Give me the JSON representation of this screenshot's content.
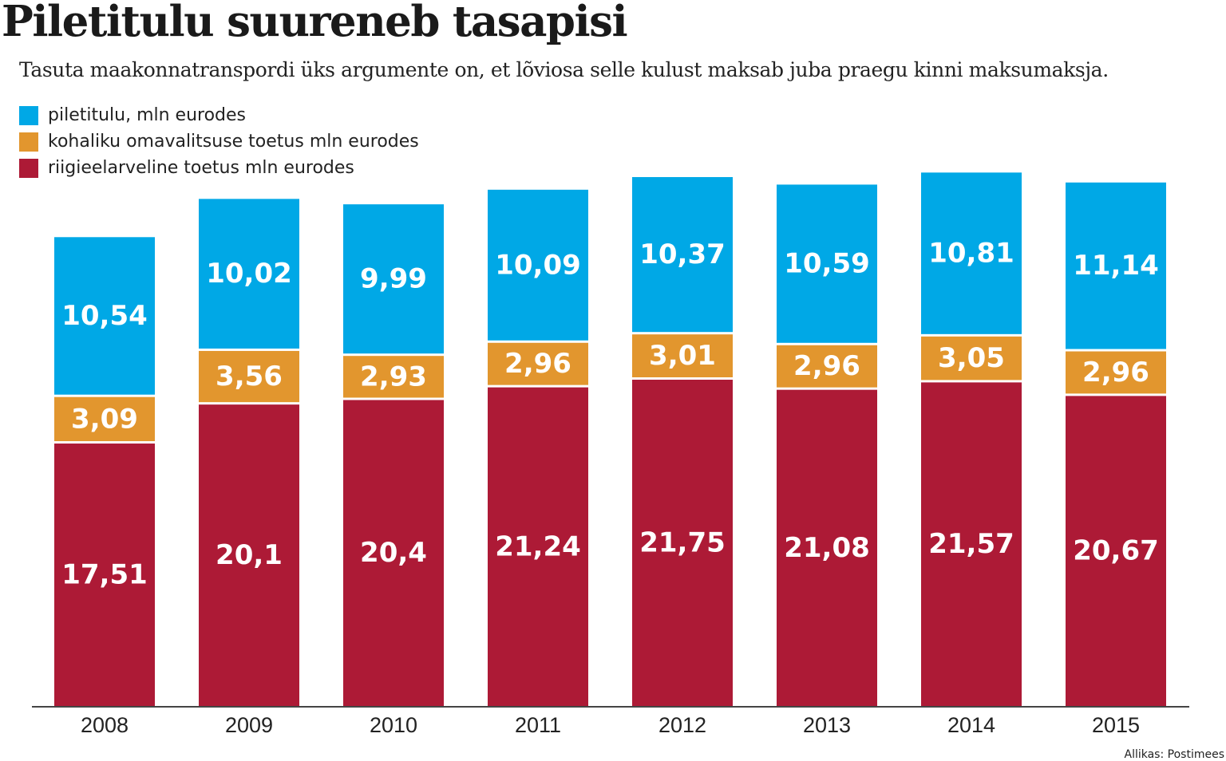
{
  "chart_data": {
    "type": "bar",
    "stacked": true,
    "title": "Piletitulu suureneb tasapisi",
    "subtitle": "Tasuta maakonnatranspordi üks argumente on, et lõviosa selle kulust maksab juba praegu kinni maksumaksja.",
    "source": "Allikas: Postimees",
    "categories": [
      "2008",
      "2009",
      "2010",
      "2011",
      "2012",
      "2013",
      "2014",
      "2015"
    ],
    "series": [
      {
        "name": "riigieelarveline toetus mln eurodes",
        "color": "#ad1a36",
        "values": [
          17.51,
          20.1,
          20.4,
          21.24,
          21.75,
          21.08,
          21.57,
          20.67
        ],
        "labels": [
          "17,51",
          "20,1",
          "20,4",
          "21,24",
          "21,75",
          "21,08",
          "21,57",
          "20,67"
        ]
      },
      {
        "name": "kohaliku omavalitsuse toetus mln eurodes",
        "color": "#e2962e",
        "values": [
          3.09,
          3.56,
          2.93,
          2.96,
          3.01,
          2.96,
          3.05,
          2.96
        ],
        "labels": [
          "3,09",
          "3,56",
          "2,93",
          "2,96",
          "3,01",
          "2,96",
          "3,05",
          "2,96"
        ]
      },
      {
        "name": "piletitulu, mln eurodes",
        "color": "#00a8e6",
        "values": [
          10.54,
          10.02,
          9.99,
          10.09,
          10.37,
          10.59,
          10.81,
          11.14
        ],
        "labels": [
          "10,54",
          "10,02",
          "9,99",
          "10,09",
          "10,37",
          "10,59",
          "10,81",
          "11,14"
        ]
      }
    ],
    "legend_order": [
      2,
      1,
      0
    ],
    "legend_position": "top-left",
    "grid": false,
    "ylim": [
      0,
      35.5
    ],
    "xlabel": "",
    "ylabel": ""
  }
}
